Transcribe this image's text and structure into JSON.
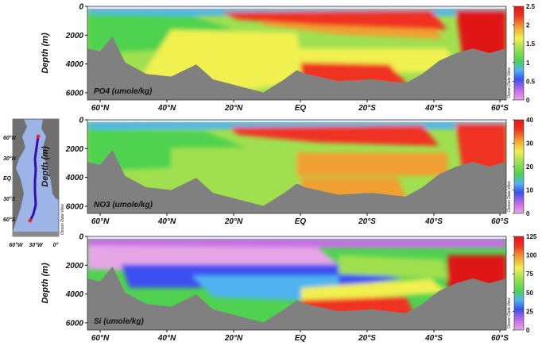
{
  "chart_data": [
    {
      "type": "heatmap",
      "title": "PO4 (umole/kg)",
      "ylabel": "Depth (m)",
      "x_ticks": [
        "60°N",
        "40°N",
        "20°N",
        "EQ",
        "20°S",
        "40°S",
        "60°S"
      ],
      "y_ticks": [
        "0",
        "2000",
        "4000",
        "6000"
      ],
      "ylim": [
        6500,
        0
      ],
      "colorbar_ticks": [
        "0",
        "0.5",
        "1",
        "1.5",
        "2",
        "2.5"
      ],
      "colorbar_range": [
        0,
        2.5
      ],
      "watermark": "Ocean Data View"
    },
    {
      "type": "heatmap",
      "title": "NO3 (umole/kg)",
      "ylabel": "Depth (m)",
      "x_ticks": [
        "60°N",
        "40°N",
        "20°N",
        "EQ",
        "20°S",
        "40°S",
        "60°S"
      ],
      "y_ticks": [
        "0",
        "2000",
        "4000",
        "6000"
      ],
      "ylim": [
        6500,
        0
      ],
      "colorbar_ticks": [
        "0",
        "10",
        "20",
        "30",
        "40"
      ],
      "colorbar_range": [
        0,
        40
      ],
      "watermark": "Ocean Data View"
    },
    {
      "type": "heatmap",
      "title": "Si (umole/kg)",
      "ylabel": "Depth (m)",
      "x_ticks": [
        "60°N",
        "40°N",
        "20°N",
        "EQ",
        "20°S",
        "40°S",
        "60°S"
      ],
      "y_ticks": [
        "0",
        "2000",
        "4000",
        "6000"
      ],
      "ylim": [
        6500,
        0
      ],
      "colorbar_ticks": [
        "0",
        "25",
        "50",
        "75",
        "100",
        "125"
      ],
      "colorbar_range": [
        0,
        125
      ],
      "watermark": "Ocean Data View"
    }
  ],
  "inset_map": {
    "lat_labels": [
      "60°N",
      "30°N",
      "EQ",
      "30°S",
      "60°S"
    ],
    "lon_labels": [
      "60°W",
      "30°W",
      "0°"
    ],
    "watermark": "Ocean Data View"
  },
  "colors": {
    "land": "#808080",
    "odv_scale": [
      "#e6a6e6",
      "#c86ee6",
      "#3c50f0",
      "#50b4f0",
      "#50d250",
      "#a0e050",
      "#f0f050",
      "#f0a030",
      "#f03020",
      "#e01818"
    ]
  }
}
